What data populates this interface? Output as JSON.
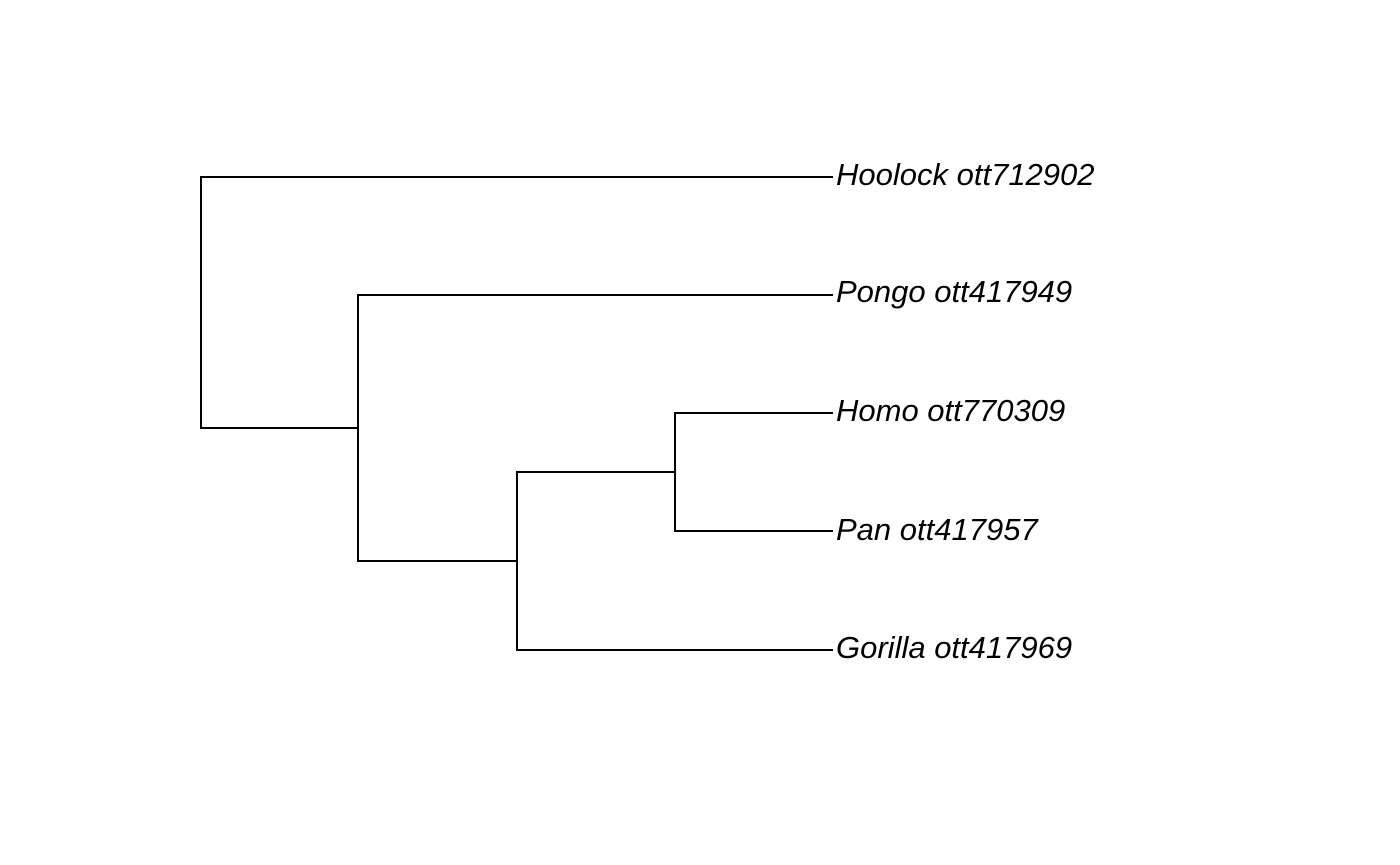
{
  "tree": {
    "type": "phylogram",
    "line_color": "#000000",
    "tips": [
      {
        "label": "Hoolock ott712902"
      },
      {
        "label": "Pongo ott417949"
      },
      {
        "label": "Homo ott770309"
      },
      {
        "label": "Pan ott417957"
      },
      {
        "label": "Gorilla ott417969"
      }
    ],
    "topology": "(Hoolock ott712902,(Pongo ott417949,((Homo ott770309,Pan ott417957),Gorilla ott417969)))"
  }
}
